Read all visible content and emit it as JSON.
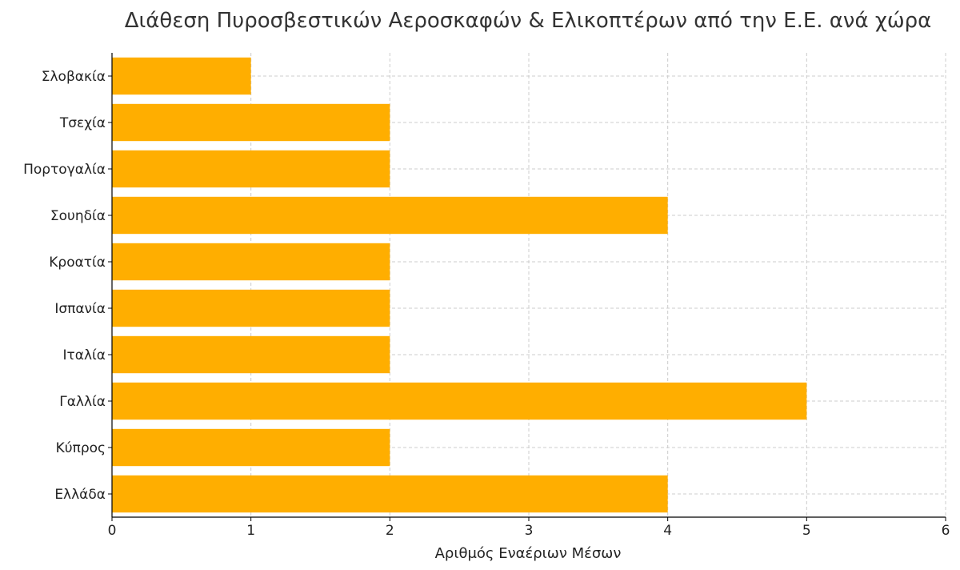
{
  "colors": {
    "bar": "#FFAE00",
    "grid": "#cccccc",
    "text": "#333333"
  },
  "chart_data": {
    "type": "bar",
    "orientation": "horizontal",
    "title": "Διάθεση Πυροσβεστικών Αεροσκαφών & Ελικοπτέρων από την Ε.Ε. ανά χώρα",
    "xlabel": "Αριθμός Εναέριων Μέσων",
    "ylabel": "",
    "categories": [
      "Ελλάδα",
      "Κύπρος",
      "Γαλλία",
      "Ιταλία",
      "Ισπανία",
      "Κροατία",
      "Σουηδία",
      "Πορτογαλία",
      "Τσεχία",
      "Σλοβακία"
    ],
    "values": [
      4,
      2,
      5,
      2,
      2,
      2,
      4,
      2,
      2,
      1
    ],
    "xlim": [
      0,
      6
    ],
    "xticks": [
      0,
      1,
      2,
      3,
      4,
      5,
      6
    ],
    "grid": true
  }
}
